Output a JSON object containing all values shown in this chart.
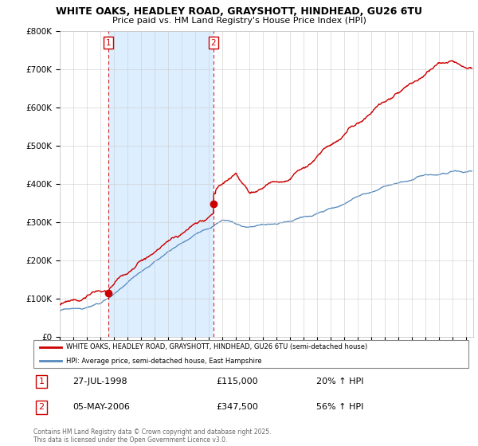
{
  "title_line1": "WHITE OAKS, HEADLEY ROAD, GRAYSHOTT, HINDHEAD, GU26 6TU",
  "title_line2": "Price paid vs. HM Land Registry's House Price Index (HPI)",
  "ylim": [
    0,
    800000
  ],
  "xlim_start": 1995.0,
  "xlim_end": 2025.5,
  "yticks": [
    0,
    100000,
    200000,
    300000,
    400000,
    500000,
    600000,
    700000,
    800000
  ],
  "ytick_labels": [
    "£0",
    "£100K",
    "£200K",
    "£300K",
    "£400K",
    "£500K",
    "£600K",
    "£700K",
    "£800K"
  ],
  "xticks": [
    1995,
    1996,
    1997,
    1998,
    1999,
    2000,
    2001,
    2002,
    2003,
    2004,
    2005,
    2006,
    2007,
    2008,
    2009,
    2010,
    2011,
    2012,
    2013,
    2014,
    2015,
    2016,
    2017,
    2018,
    2019,
    2020,
    2021,
    2022,
    2023,
    2024,
    2025
  ],
  "transaction1_x": 1998.57,
  "transaction1_y": 115000,
  "transaction1_label": "1",
  "transaction1_date": "27-JUL-1998",
  "transaction1_price": "£115,000",
  "transaction1_hpi": "20% ↑ HPI",
  "transaction2_x": 2006.34,
  "transaction2_y": 347500,
  "transaction2_label": "2",
  "transaction2_date": "05-MAY-2006",
  "transaction2_price": "£347,500",
  "transaction2_hpi": "56% ↑ HPI",
  "red_color": "#cc0000",
  "blue_color": "#5588bb",
  "shade_color": "#ddeeff",
  "vline_color": "#cc0000",
  "legend_label_red": "WHITE OAKS, HEADLEY ROAD, GRAYSHOTT, HINDHEAD, GU26 6TU (semi-detached house)",
  "legend_label_blue": "HPI: Average price, semi-detached house, East Hampshire",
  "footer_text": "Contains HM Land Registry data © Crown copyright and database right 2025.\nThis data is licensed under the Open Government Licence v3.0.",
  "background_color": "#ffffff",
  "grid_color": "#cccccc"
}
